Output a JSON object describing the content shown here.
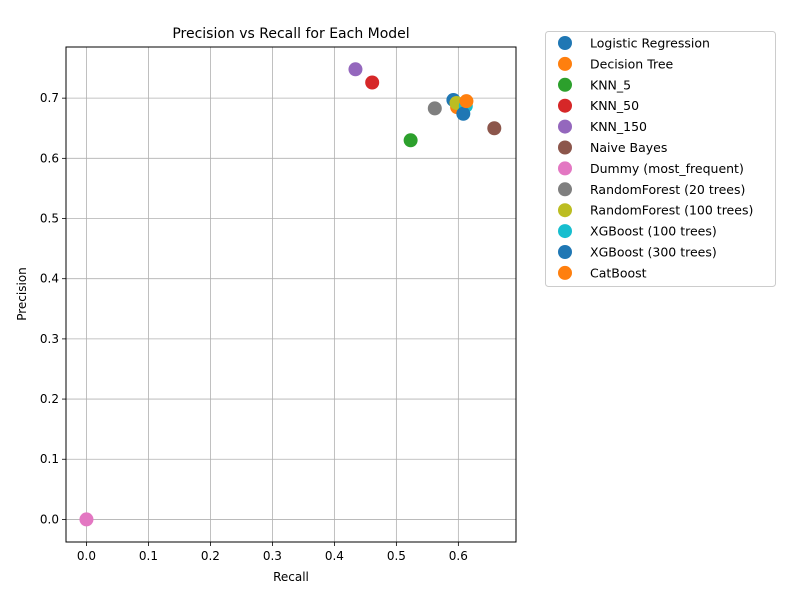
{
  "chart_data": {
    "type": "scatter",
    "title": "Precision vs Recall for Each Model",
    "xlabel": "Recall",
    "ylabel": "Precision",
    "xlim": [
      -0.033,
      0.693
    ],
    "ylim": [
      -0.0375,
      0.785
    ],
    "xticks": [
      0.0,
      0.1,
      0.2,
      0.3,
      0.4,
      0.5,
      0.6
    ],
    "xtick_labels": [
      "0.0",
      "0.1",
      "0.2",
      "0.3",
      "0.4",
      "0.5",
      "0.6"
    ],
    "yticks": [
      0.0,
      0.1,
      0.2,
      0.3,
      0.4,
      0.5,
      0.6,
      0.7
    ],
    "ytick_labels": [
      "0.0",
      "0.1",
      "0.2",
      "0.3",
      "0.4",
      "0.5",
      "0.6",
      "0.7"
    ],
    "grid": true,
    "legend_position": "outside upper right",
    "series": [
      {
        "name": "Logistic Regression",
        "color": "#1f77b4",
        "x": 0.592,
        "y": 0.697
      },
      {
        "name": "Decision Tree",
        "color": "#ff7f0e",
        "x": 0.598,
        "y": 0.685
      },
      {
        "name": "KNN_5",
        "color": "#2ca02c",
        "x": 0.523,
        "y": 0.63
      },
      {
        "name": "KNN_50",
        "color": "#d62728",
        "x": 0.461,
        "y": 0.726
      },
      {
        "name": "KNN_150",
        "color": "#9467bd",
        "x": 0.434,
        "y": 0.748
      },
      {
        "name": "Naive Bayes",
        "color": "#8c564b",
        "x": 0.658,
        "y": 0.65
      },
      {
        "name": "Dummy (most_frequent)",
        "color": "#e377c2",
        "x": 0.0,
        "y": 0.0
      },
      {
        "name": "RandomForest (20 trees)",
        "color": "#7f7f7f",
        "x": 0.562,
        "y": 0.683
      },
      {
        "name": "RandomForest (100 trees)",
        "color": "#bcbd22",
        "x": 0.597,
        "y": 0.692
      },
      {
        "name": "XGBoost (100 trees)",
        "color": "#17becf",
        "x": 0.612,
        "y": 0.687
      },
      {
        "name": "XGBoost (300 trees)",
        "color": "#1f77b4",
        "x": 0.608,
        "y": 0.674
      },
      {
        "name": "CatBoost",
        "color": "#ff7f0e",
        "x": 0.613,
        "y": 0.695
      }
    ]
  }
}
